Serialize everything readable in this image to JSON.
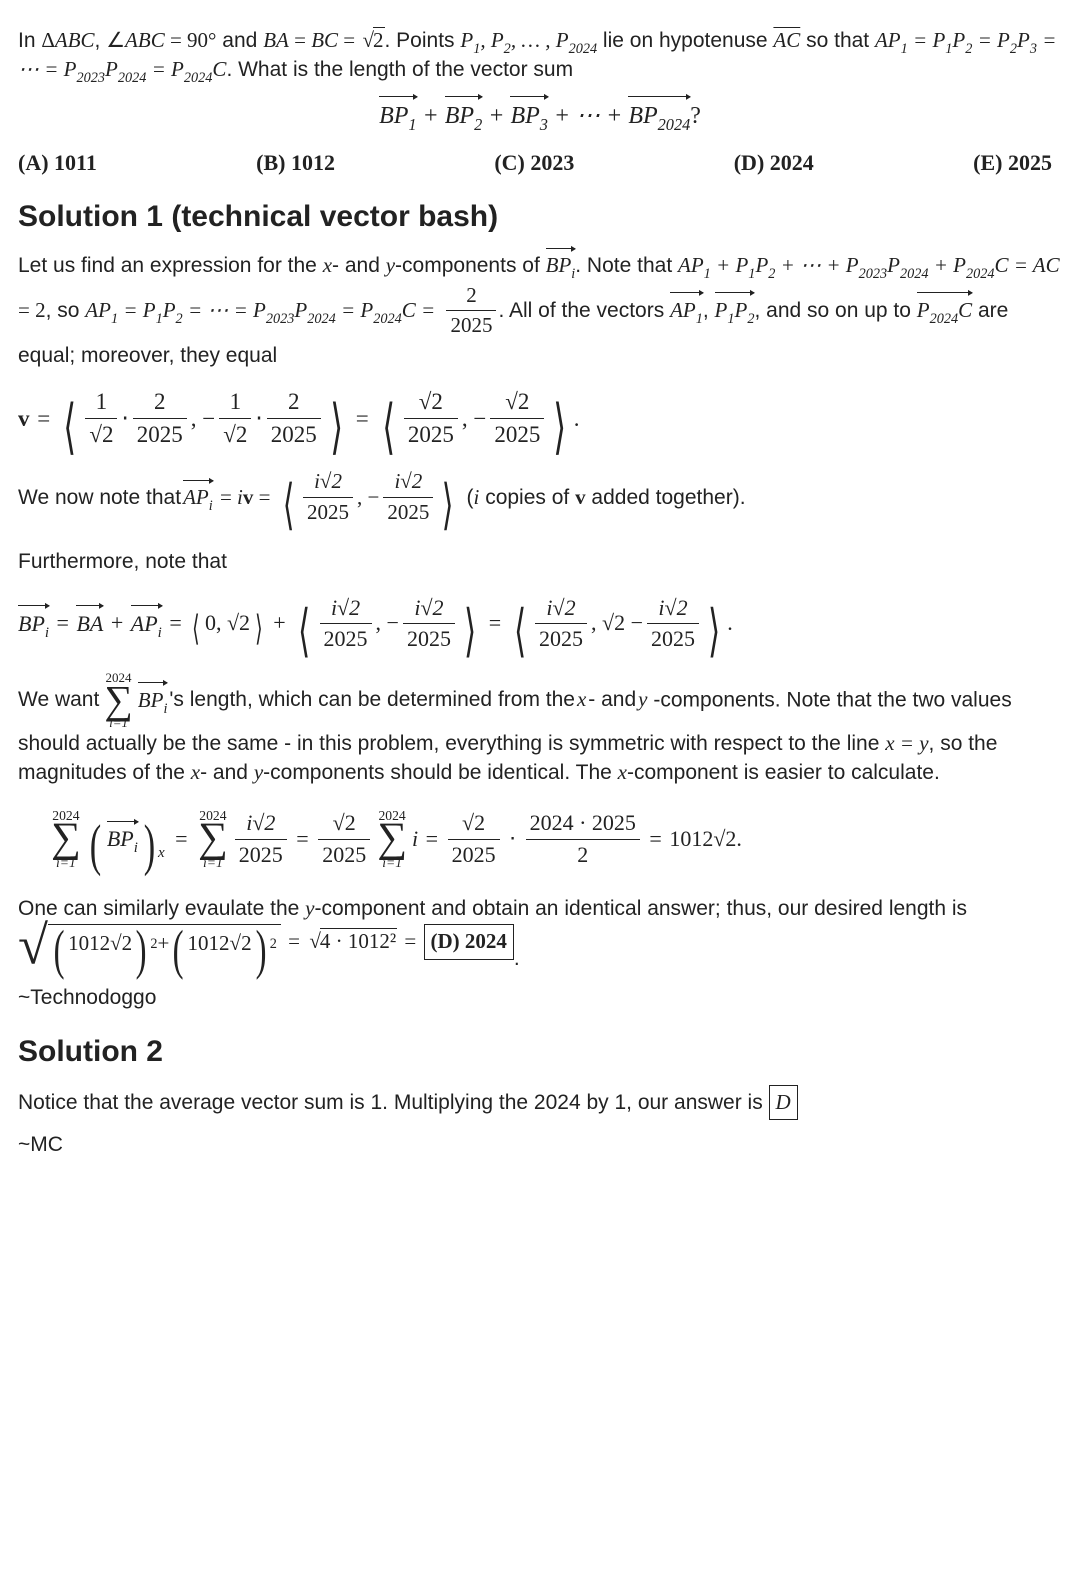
{
  "problem": {
    "intro1": "In ",
    "triangle": "ΔABC",
    "comma1": ", ",
    "angleABC": "∠ABC",
    "eq90": " = 90°",
    "and": " and ",
    "BA": "BA",
    "eq1": " = ",
    "BC": "BC",
    "eq2": " = ",
    "root2": "2",
    "period1": ". Points ",
    "points": "P₁, P₂, … , P₂₀₂₄",
    "lie": " lie on",
    "hypotenuse": "hypotenuse ",
    "AC": "AC",
    "sothat": " so that ",
    "chain": "AP₁ = P₁P₂ = P₂P₃ = ⋯ = P₂₀₂₃P₂₀₂₄ = P₂₀₂₄C",
    "whatIs": ". What is the length of the vector sum",
    "vecSum": "BP₁ + BP₂ + BP₃ + ⋯ + BP₂₀₂₄?",
    "choices": {
      "A": "(A) 1011",
      "B": "(B) 1012",
      "C": "(C) 2023",
      "D": "(D) 2024",
      "E": "(E) 2025"
    }
  },
  "sol1": {
    "title": "Solution 1 (technical vector bash)",
    "p1a": "Let us find an expression for the ",
    "x": "x",
    "p1b": "- and ",
    "y": "y",
    "p1c": "-components of ",
    "BPi": "BPᵢ",
    "p1d": ". Note that",
    "line2": "AP₁ + P₁P₂ + ⋯ + P₂₀₂₃P₂₀₂₄ + P₂₀₂₄C = AC = 2, so",
    "line3a": "AP₁ = P₁P₂ = ⋯ = P₂₀₂₃P₂₀₂₄ = P₂₀₂₄C = ",
    "frac2_2025n": "2",
    "frac2_2025d": "2025",
    "line3b": ". All of the vectors ",
    "AP1": "AP₁",
    "P1P2": "P₁P₂",
    "line4": "and so on up to ",
    "P2024C": "P₂₀₂₄C",
    "line4b": " are equal; moreover, they equal",
    "veq": "v",
    "eq": " = ",
    "oneRoot2": "1",
    "dot": " ⋅ ",
    "rt2n": "2",
    "rt2d": "2025",
    "sqrt2_2025n": "√2",
    "sqrt2_2025d": "2025",
    "nowNote": "We now note that ",
    "APi": "APᵢ",
    "eqiv": " = i",
    "isqrt2n": "i√2",
    "isqrt2d": "2025",
    "copies": " (i copies of v added together).",
    "further": "Furthermore, note that",
    "BPieq": "BPᵢ",
    "BA": "BA",
    "plus": " + ",
    "zeroRoot2": "0, √2",
    "sqrt2minus": "√2 − ",
    "wewant": "We want ",
    "sumtop": "2024",
    "sumbot": "i=1",
    "length": "'s length, which can be determined from the ",
    "and": "- and ",
    "compNote": "-components. Note that the two values should actually be the same - in this problem, everything is symmetric with respect to the line ",
    "xeqy": "x = y",
    "soMag": ", so the magnitudes of the ",
    "shouldBe": "-components should be identical. The ",
    "easier": "-component is easier to calculate.",
    "subx": "x",
    "sqrt2_2025": "√2",
    "d2025": "2025",
    "bigfracn": "2024 · 2025",
    "bigfracd": "2",
    "res": "1012√2.",
    "eval": "One can similarly evaulate the ",
    "obtain": "-component and obtain an identical answer; thus, our desired length is ",
    "sq1012root2": "1012√2",
    "sq2": "2",
    "fourTimes": "4 · 1012²",
    "boxed": "(D) 2024",
    "credit": "~Technodoggo"
  },
  "sol2": {
    "title": "Solution 2",
    "body1": "Notice that the average vector sum is 1. Multiplying the 2024 by 1, our answer is ",
    "box": "D",
    "credit": "~MC"
  },
  "style": {
    "bg": "#ffffff",
    "text": "#222222",
    "bodyFont": 21,
    "headingFont": 30
  }
}
